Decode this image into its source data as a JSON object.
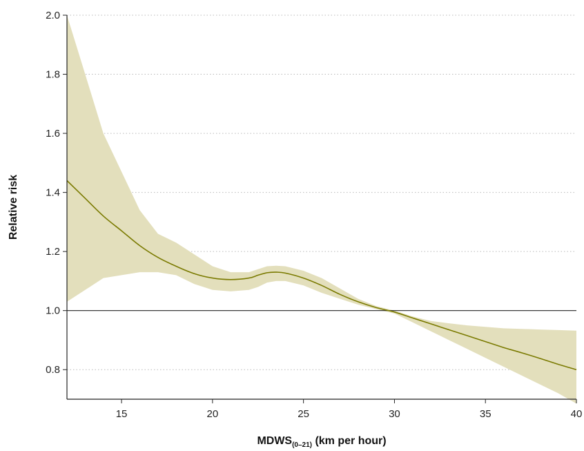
{
  "chart_data": {
    "type": "line",
    "xlabel": "MDWS",
    "xlabel_subscript": "(0–21)",
    "xlabel_suffix": " (km per hour)",
    "ylabel": "Relative risk",
    "xlim": [
      12,
      40
    ],
    "ylim": [
      0.7,
      2.0
    ],
    "xticks": [
      15,
      20,
      25,
      30,
      35,
      40
    ],
    "yticks": [
      0.8,
      1.0,
      1.2,
      1.4,
      1.6,
      1.8,
      2.0
    ],
    "ytick_labels": [
      "0.8",
      "1.0",
      "1.2",
      "1.4",
      "1.6",
      "1.8",
      "2.0"
    ],
    "grid": "horizontal-dotted",
    "reference_line_y": 1.0,
    "series": [
      {
        "x": [
          12,
          13,
          14,
          15,
          16,
          17,
          18,
          19,
          20,
          21,
          22,
          22.5,
          23,
          23.5,
          24,
          25,
          26,
          27,
          28,
          29,
          30,
          31,
          32,
          33,
          34,
          35,
          36,
          37,
          38,
          39,
          40
        ],
        "y": [
          1.44,
          1.38,
          1.32,
          1.27,
          1.22,
          1.18,
          1.15,
          1.125,
          1.11,
          1.105,
          1.11,
          1.12,
          1.128,
          1.13,
          1.127,
          1.11,
          1.085,
          1.055,
          1.03,
          1.01,
          0.995,
          0.975,
          0.955,
          0.935,
          0.915,
          0.895,
          0.875,
          0.857,
          0.838,
          0.818,
          0.8
        ],
        "ci_lower": [
          1.03,
          1.07,
          1.11,
          1.12,
          1.13,
          1.13,
          1.12,
          1.09,
          1.07,
          1.065,
          1.07,
          1.08,
          1.095,
          1.1,
          1.1,
          1.085,
          1.06,
          1.04,
          1.02,
          1.005,
          0.99,
          0.96,
          0.93,
          0.9,
          0.87,
          0.84,
          0.81,
          0.78,
          0.75,
          0.72,
          0.685
        ],
        "ci_upper": [
          2.0,
          1.8,
          1.6,
          1.47,
          1.34,
          1.26,
          1.23,
          1.19,
          1.15,
          1.13,
          1.13,
          1.14,
          1.15,
          1.152,
          1.15,
          1.135,
          1.11,
          1.075,
          1.04,
          1.015,
          1.0,
          0.98,
          0.965,
          0.957,
          0.95,
          0.945,
          0.94,
          0.938,
          0.936,
          0.934,
          0.932
        ]
      }
    ],
    "colors": {
      "line": "#7a7a00",
      "band": "#e3dfbc",
      "grid": "#b8b8b8",
      "axis": "#222222",
      "reference": "#222222"
    }
  }
}
